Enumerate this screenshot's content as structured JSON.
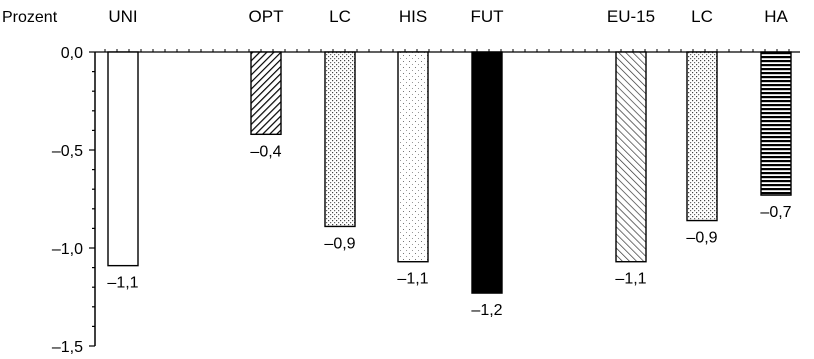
{
  "chart_data": {
    "type": "bar",
    "title": "",
    "xlabel": "",
    "ylabel": "Prozent",
    "ylim": [
      -1.5,
      0
    ],
    "grid": false,
    "categories": [
      "UNI",
      "OPT",
      "LC",
      "HIS",
      "FUT",
      "EU-15",
      "LC",
      "HA"
    ],
    "values": [
      -1.09,
      -0.42,
      -0.89,
      -1.07,
      -1.23,
      -1.07,
      -0.86,
      -0.73
    ],
    "data_labels": [
      "–1,1",
      "–0,4",
      "–0,9",
      "–1,1",
      "–1,2",
      "–1,1",
      "–0,9",
      "–0,7"
    ],
    "y_ticks": [
      {
        "value": 0,
        "label": "0,0"
      },
      {
        "value": -0.5,
        "label": "–0,5"
      },
      {
        "value": -1,
        "label": "–1,0"
      },
      {
        "value": -1.5,
        "label": "–1,5"
      }
    ],
    "bar_styles": [
      "white",
      "hatch-dense",
      "dots",
      "dots-light",
      "solid-black",
      "hatch-diagonal",
      "dots",
      "horizontal-lines"
    ]
  }
}
